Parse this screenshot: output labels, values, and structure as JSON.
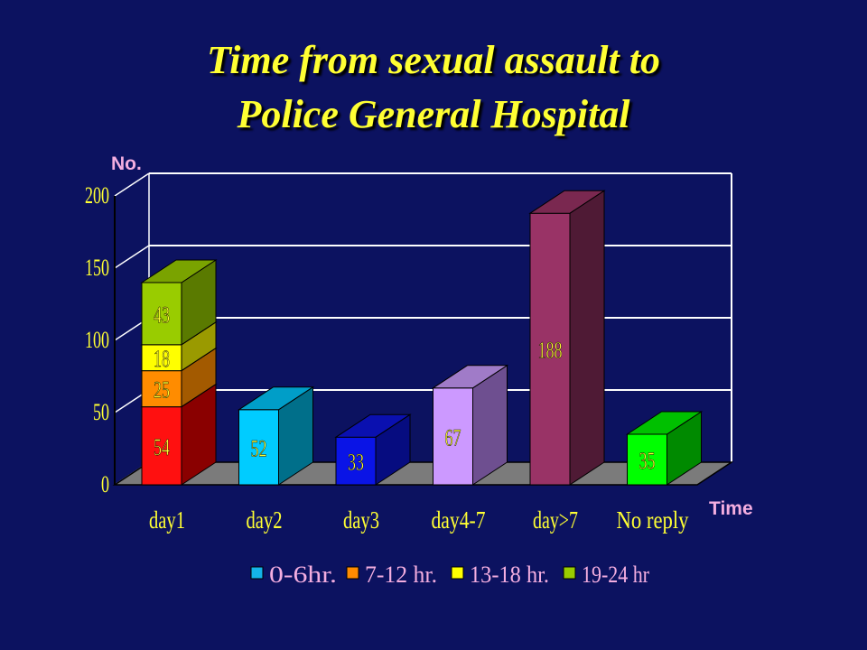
{
  "title": [
    "Time from sexual assault to",
    "Police General Hospital"
  ],
  "colors": {
    "background": "#0c1260",
    "title": "#ffff33",
    "axis_label": "#f4aee0",
    "tick_label": "#ffff33",
    "legend_text": "#f4aee0",
    "floor": "#7b7b7b"
  },
  "chart_data": {
    "type": "bar",
    "stacked": true,
    "three_d": true,
    "title": "Time from sexual assault to Police General Hospital",
    "xlabel": "Time",
    "ylabel": "No.",
    "ylim": [
      0,
      200
    ],
    "yticks": [
      0,
      50,
      100,
      150,
      200
    ],
    "grid": true,
    "legend_position": "bottom",
    "categories": [
      "day1",
      "day2",
      "day3",
      "day4-7",
      "day>7",
      "No reply"
    ],
    "series": [
      {
        "name": "0-6hr.",
        "color": "#14b4e8"
      },
      {
        "name": "7-12 hr.",
        "color": "#ff8c00"
      },
      {
        "name": "13-18 hr.",
        "color": "#ffff00"
      },
      {
        "name": "19-24 hr",
        "color": "#99cc00"
      }
    ],
    "bars": [
      {
        "category": "day1",
        "segments": [
          {
            "value": 54,
            "label": "54",
            "front": "#ff1010",
            "side": "#8a0000",
            "top": "#c01010",
            "text": "#ffff33"
          },
          {
            "value": 25,
            "label": "25",
            "front": "#ff8c00",
            "side": "#a35a00",
            "top": "#c87000",
            "text": "#ffff33"
          },
          {
            "value": 18,
            "label": "18",
            "front": "#ffff00",
            "side": "#9a9a00",
            "top": "#cccc00",
            "text": "#ffff33"
          },
          {
            "value": 43,
            "label": "43",
            "front": "#99cc00",
            "side": "#5a7a00",
            "top": "#7aa300",
            "text": "#ffff33"
          }
        ]
      },
      {
        "category": "day2",
        "segments": [
          {
            "value": 52,
            "label": "52",
            "front": "#00ccff",
            "side": "#006f8a",
            "top": "#009ec8",
            "text": "#ffff33"
          }
        ]
      },
      {
        "category": "day3",
        "segments": [
          {
            "value": 33,
            "label": "33",
            "front": "#0a14e6",
            "side": "#060c80",
            "top": "#0a10b0",
            "text": "#ffff33"
          }
        ]
      },
      {
        "category": "day4-7",
        "segments": [
          {
            "value": 67,
            "label": "67",
            "front": "#cc99ff",
            "side": "#6e4f90",
            "top": "#a07bc8",
            "text": "#ffff33"
          }
        ]
      },
      {
        "category": "day>7",
        "segments": [
          {
            "value": 188,
            "label": "188",
            "front": "#993366",
            "side": "#4f1a35",
            "top": "#7a2850",
            "text": "#ffff33"
          }
        ]
      },
      {
        "category": "No reply",
        "segments": [
          {
            "value": 35,
            "label": "35",
            "front": "#00ff00",
            "side": "#008a00",
            "top": "#00c000",
            "text": "#ffff33"
          }
        ]
      }
    ]
  }
}
